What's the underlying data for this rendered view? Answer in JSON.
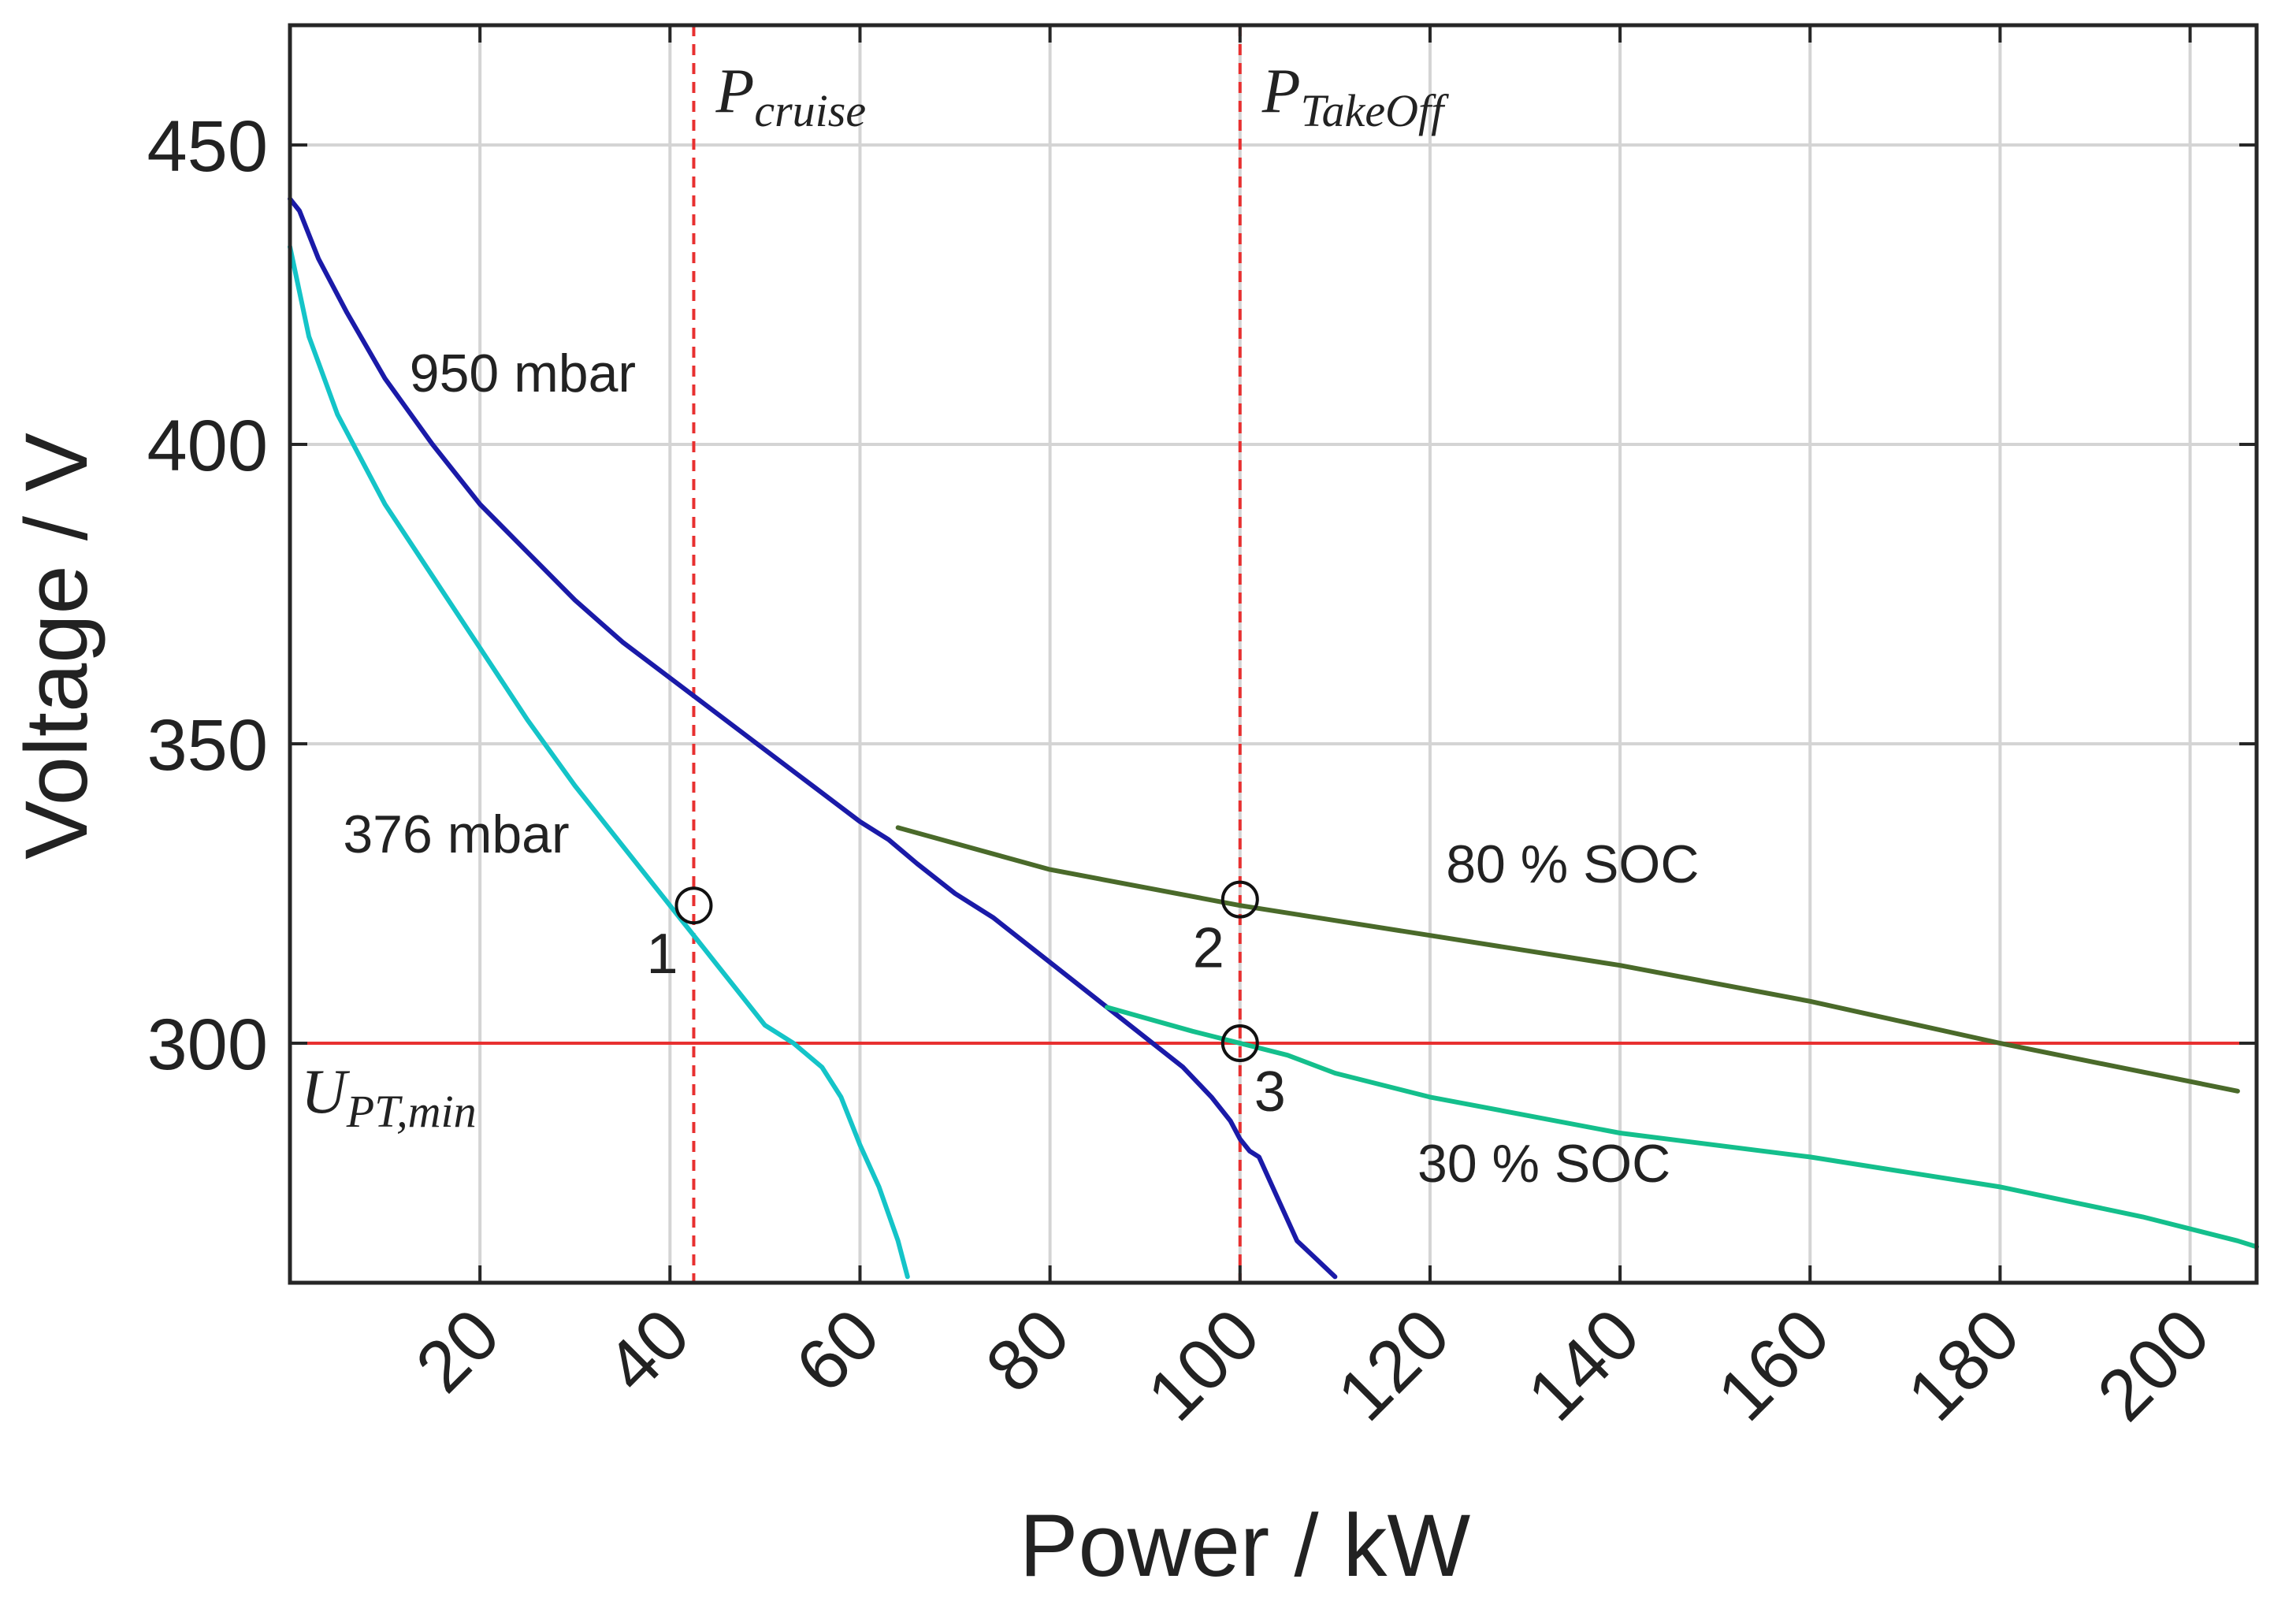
{
  "chart_data": {
    "type": "line",
    "title": "",
    "xlabel": "Power / kW",
    "ylabel": "Voltage / V",
    "xlim": [
      0,
      207
    ],
    "ylim": [
      260,
      470
    ],
    "xticks": [
      20,
      40,
      60,
      80,
      100,
      120,
      140,
      160,
      180,
      200
    ],
    "yticks": [
      300,
      350,
      400,
      450
    ],
    "grid": true,
    "series": [
      {
        "name": "950 mbar",
        "color": "#1a1aa8",
        "points": [
          [
            0,
            441
          ],
          [
            1,
            439
          ],
          [
            3,
            431
          ],
          [
            6,
            422
          ],
          [
            10,
            411
          ],
          [
            15,
            400
          ],
          [
            20,
            390
          ],
          [
            25,
            382
          ],
          [
            30,
            374
          ],
          [
            35,
            367
          ],
          [
            40,
            361
          ],
          [
            45,
            355
          ],
          [
            50,
            349
          ],
          [
            55,
            343
          ],
          [
            60,
            337
          ],
          [
            63,
            334
          ],
          [
            66,
            330
          ],
          [
            70,
            325
          ],
          [
            74,
            321
          ],
          [
            78,
            316
          ],
          [
            82,
            311
          ],
          [
            86,
            306
          ],
          [
            90,
            301
          ],
          [
            94,
            296
          ],
          [
            97,
            291
          ],
          [
            99,
            287
          ],
          [
            100,
            284
          ],
          [
            101,
            282
          ],
          [
            102,
            281
          ],
          [
            104,
            274
          ],
          [
            106,
            267
          ],
          [
            108,
            264
          ],
          [
            110,
            261
          ]
        ]
      },
      {
        "name": "376 mbar",
        "color": "#14c4c8",
        "points": [
          [
            0,
            433
          ],
          [
            2,
            418
          ],
          [
            5,
            405
          ],
          [
            10,
            390
          ],
          [
            15,
            378
          ],
          [
            20,
            366
          ],
          [
            25,
            354
          ],
          [
            30,
            343
          ],
          [
            35,
            333
          ],
          [
            40,
            323
          ],
          [
            45,
            313
          ],
          [
            50,
            303
          ],
          [
            53,
            300
          ],
          [
            56,
            296
          ],
          [
            58,
            291
          ],
          [
            60,
            283
          ],
          [
            62,
            276
          ],
          [
            64,
            267
          ],
          [
            65,
            261
          ]
        ]
      },
      {
        "name": "80 % SOC",
        "color": "#4a6a2a",
        "points": [
          [
            64,
            336
          ],
          [
            80,
            329
          ],
          [
            100,
            323
          ],
          [
            120,
            318
          ],
          [
            140,
            313
          ],
          [
            160,
            307
          ],
          [
            180,
            300
          ],
          [
            205,
            292
          ]
        ]
      },
      {
        "name": "30 % SOC",
        "color": "#14bf8c",
        "points": [
          [
            86,
            306
          ],
          [
            95,
            302
          ],
          [
            100,
            300
          ],
          [
            105,
            298
          ],
          [
            110,
            295
          ],
          [
            120,
            291
          ],
          [
            140,
            285
          ],
          [
            160,
            281
          ],
          [
            180,
            276
          ],
          [
            195,
            271
          ],
          [
            205,
            267
          ],
          [
            207,
            266
          ]
        ]
      }
    ],
    "reference_lines": [
      {
        "kind": "vertical",
        "x": 42.5,
        "color": "#e83030",
        "style": "dashed",
        "label": "P",
        "subscript": "cruise"
      },
      {
        "kind": "vertical",
        "x": 100,
        "color": "#e83030",
        "style": "dashed",
        "label": "P",
        "subscript": "TakeOff"
      },
      {
        "kind": "horizontal",
        "y": 300,
        "color": "#e83030",
        "style": "solid",
        "label": "U",
        "subscript": "PT,min"
      }
    ],
    "annotations": [
      {
        "text": "950 mbar",
        "x": 24.5,
        "y": 412
      },
      {
        "text": "376 mbar",
        "x": 17.5,
        "y": 335
      },
      {
        "text": "80 % SOC",
        "x": 135,
        "y": 330
      },
      {
        "text": "30 % SOC",
        "x": 132,
        "y": 280
      }
    ],
    "marked_points": [
      {
        "label": "1",
        "x": 42.5,
        "y": 323
      },
      {
        "label": "2",
        "x": 100,
        "y": 324
      },
      {
        "label": "3",
        "x": 100,
        "y": 300
      }
    ]
  }
}
